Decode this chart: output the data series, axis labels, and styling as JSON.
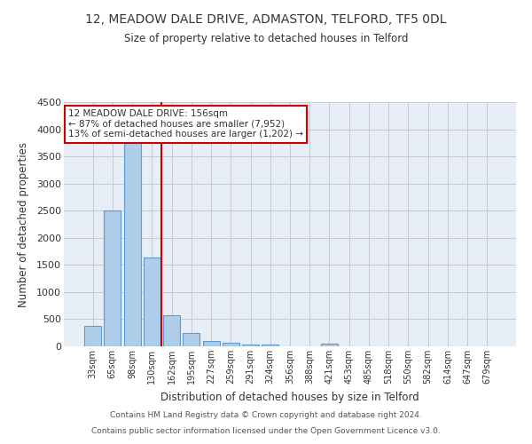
{
  "title": "12, MEADOW DALE DRIVE, ADMASTON, TELFORD, TF5 0DL",
  "subtitle": "Size of property relative to detached houses in Telford",
  "xlabel": "Distribution of detached houses by size in Telford",
  "ylabel": "Number of detached properties",
  "footnote1": "Contains HM Land Registry data © Crown copyright and database right 2024.",
  "footnote2": "Contains public sector information licensed under the Open Government Licence v3.0.",
  "bin_labels": [
    "33sqm",
    "65sqm",
    "98sqm",
    "130sqm",
    "162sqm",
    "195sqm",
    "227sqm",
    "259sqm",
    "291sqm",
    "324sqm",
    "356sqm",
    "388sqm",
    "421sqm",
    "453sqm",
    "485sqm",
    "518sqm",
    "550sqm",
    "582sqm",
    "614sqm",
    "647sqm",
    "679sqm"
  ],
  "bar_heights": [
    380,
    2500,
    3750,
    1640,
    580,
    240,
    105,
    60,
    40,
    40,
    0,
    0,
    50,
    0,
    0,
    0,
    0,
    0,
    0,
    0,
    0
  ],
  "bar_color": "#aecde8",
  "bar_edge_color": "#5b9bd5",
  "background_color": "#e8eef8",
  "grid_color": "#c8c8c8",
  "red_line_color": "#cc0000",
  "ylim": [
    0,
    4500
  ],
  "yticks": [
    0,
    500,
    1000,
    1500,
    2000,
    2500,
    3000,
    3500,
    4000,
    4500
  ],
  "annotation_text": "12 MEADOW DALE DRIVE: 156sqm\n← 87% of detached houses are smaller (7,952)\n13% of semi-detached houses are larger (1,202) →",
  "annotation_box_color": "#ffffff",
  "annotation_box_edge": "#cc0000"
}
